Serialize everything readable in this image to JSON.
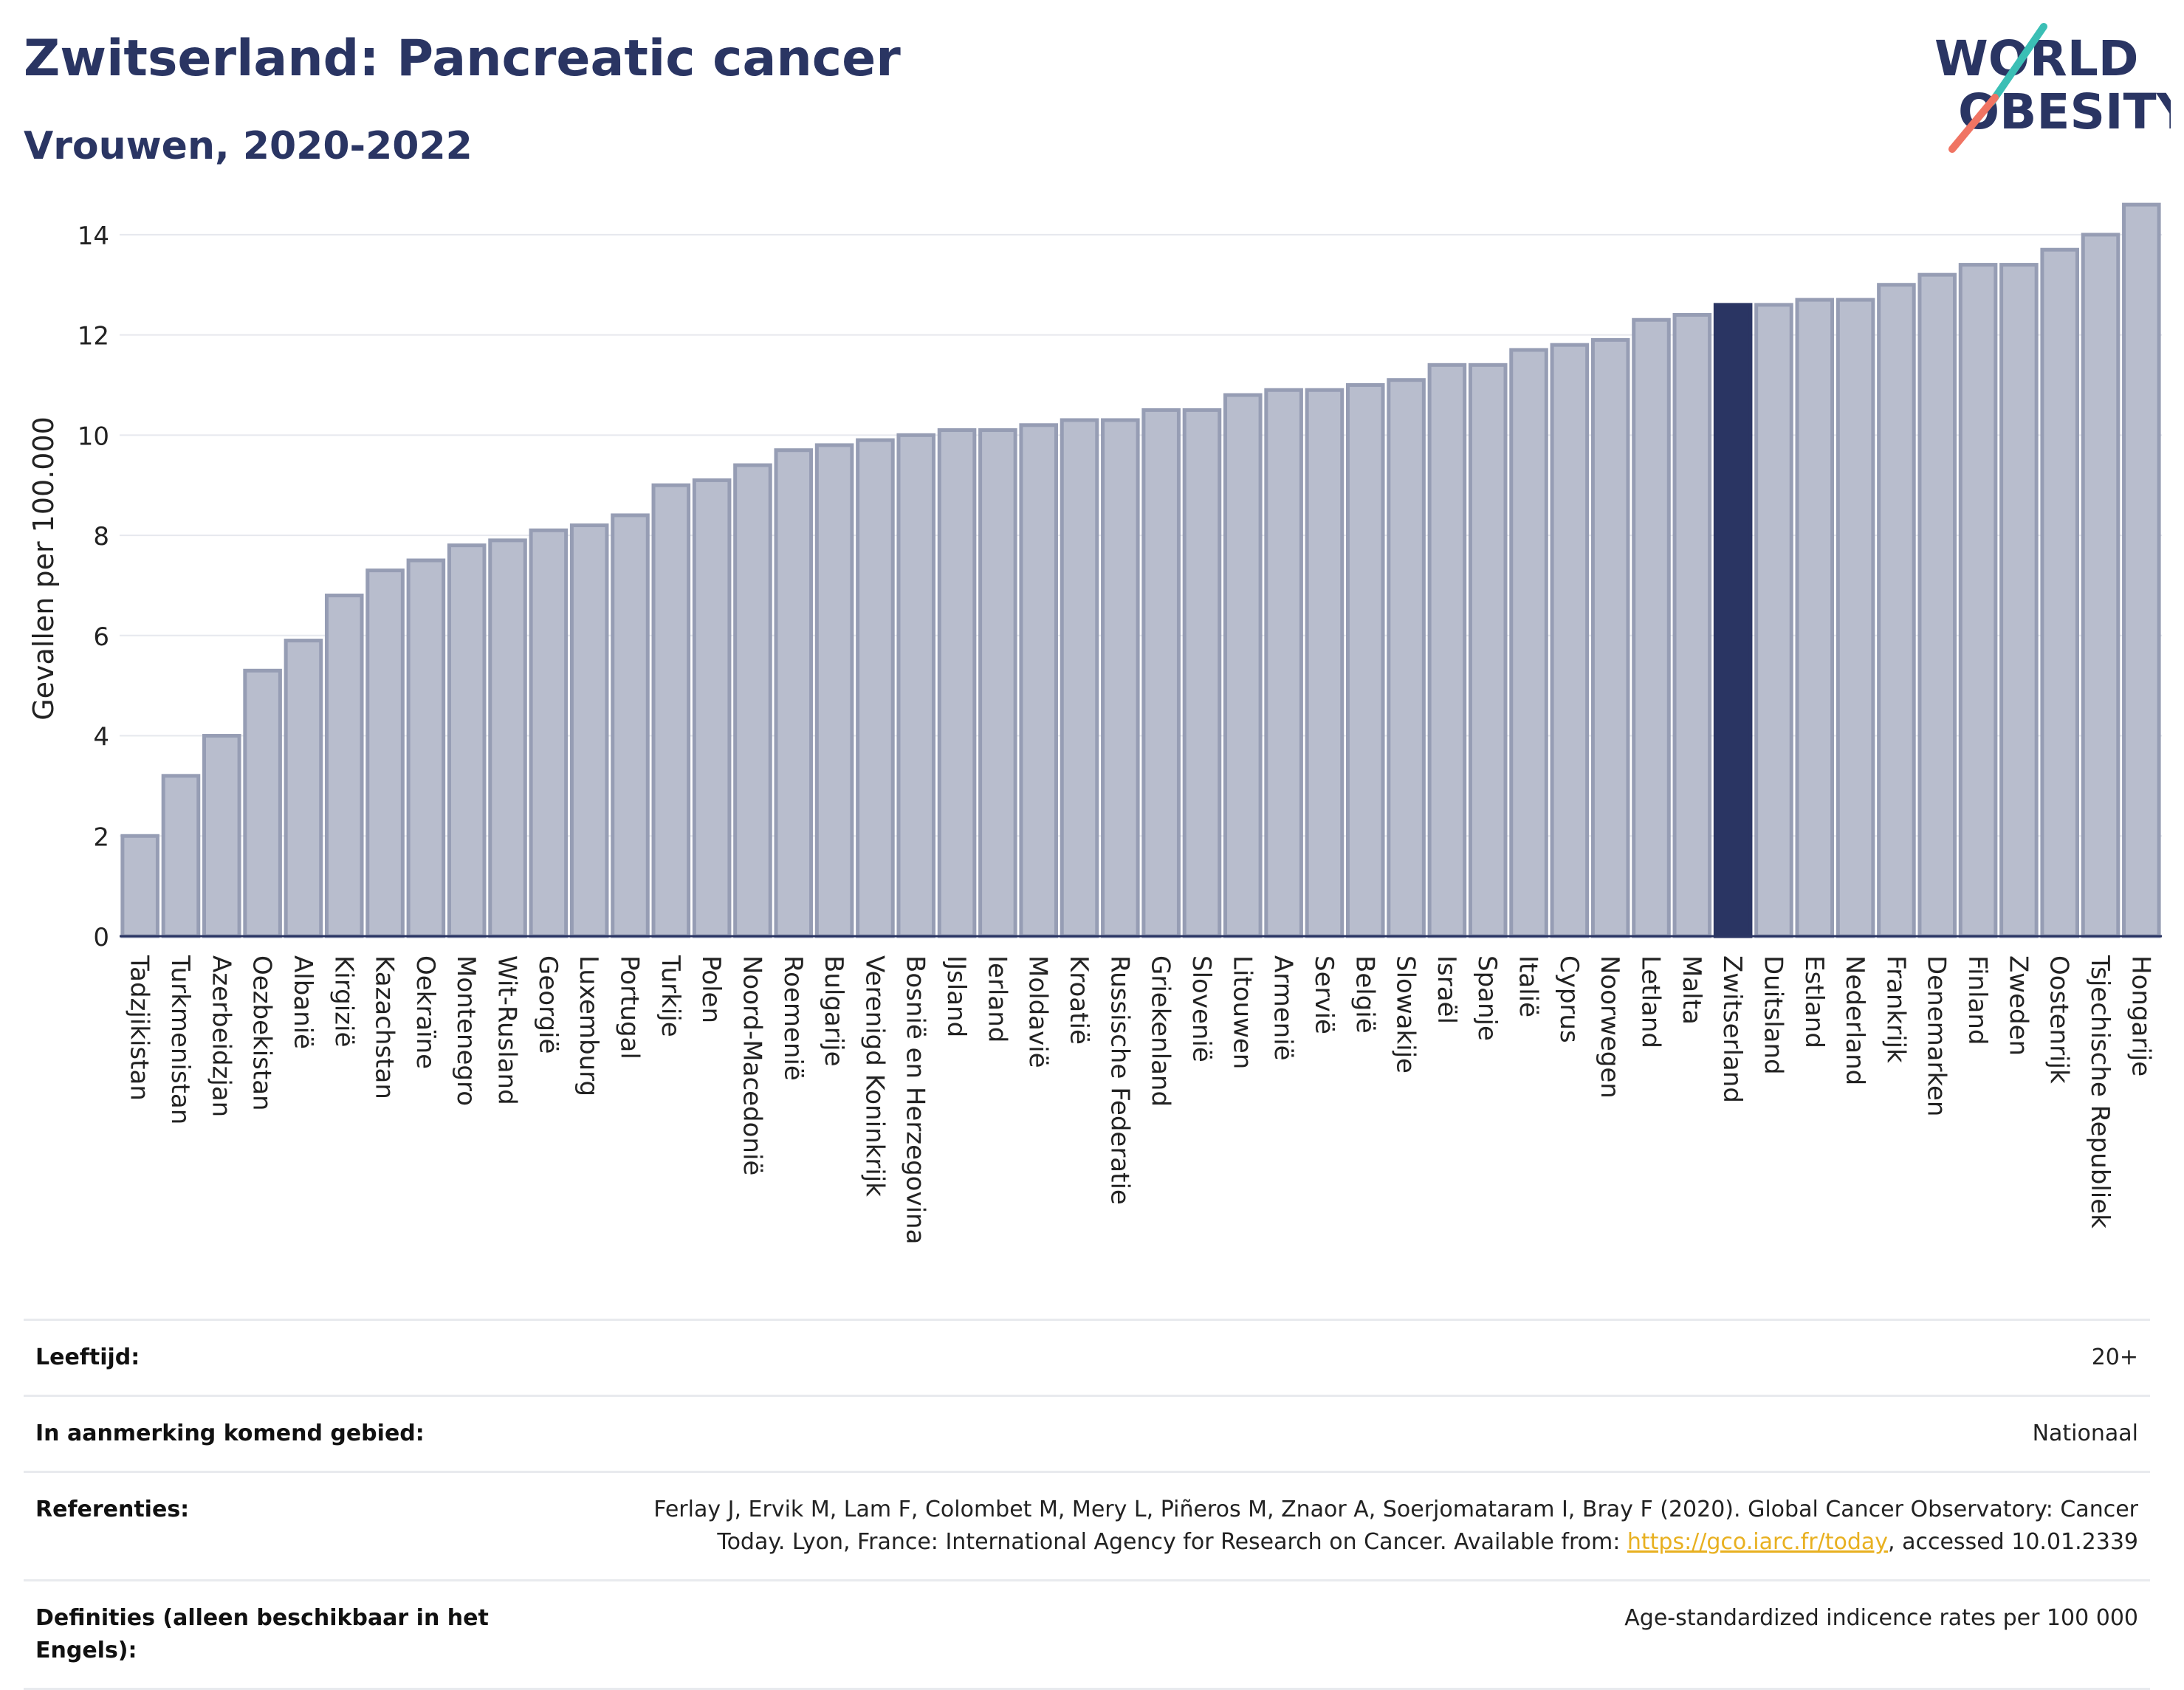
{
  "header": {
    "title": "Zwitserland: Pancreatic cancer",
    "subtitle": "Vrouwen, 2020-2022"
  },
  "logo": {
    "line1": "WORLD",
    "line2": "OBESITY",
    "accent_teal": "#3bbfb5",
    "accent_coral": "#f07463",
    "text_color": "#2a3563"
  },
  "chart_data": {
    "type": "bar",
    "ylabel": "Gevallen per 100.000",
    "ylim": [
      0,
      15
    ],
    "yticks": [
      0,
      2,
      4,
      6,
      8,
      10,
      12,
      14
    ],
    "highlight": "Zwitserland",
    "colors": {
      "bar": "#b8bdcd",
      "bar_border": "#969db4",
      "highlight": "#2a3563"
    },
    "categories": [
      "Tadzjikistan",
      "Turkmenistan",
      "Azerbeidzjan",
      "Oezbekistan",
      "Albanië",
      "Kirgizië",
      "Kazachstan",
      "Oekraïne",
      "Montenegro",
      "Wit-Rusland",
      "Georgië",
      "Luxemburg",
      "Portugal",
      "Turkije",
      "Polen",
      "Noord-Macedonië",
      "Roemenië",
      "Bulgarije",
      "Verenigd Koninkrijk",
      "Bosnië en Herzegovina",
      "IJsland",
      "Ierland",
      "Moldavië",
      "Kroatië",
      "Russische Federatie",
      "Griekenland",
      "Slovenië",
      "Litouwen",
      "Armenië",
      "Servië",
      "België",
      "Slowakije",
      "Israël",
      "Spanje",
      "Italië",
      "Cyprus",
      "Noorwegen",
      "Letland",
      "Malta",
      "Zwitserland",
      "Duitsland",
      "Estland",
      "Nederland",
      "Frankrijk",
      "Denemarken",
      "Finland",
      "Zweden",
      "Oostenrijk",
      "Tsjechische Republiek",
      "Hongarije"
    ],
    "values": [
      2.0,
      3.2,
      4.0,
      5.3,
      5.9,
      6.8,
      7.3,
      7.5,
      7.8,
      7.9,
      8.1,
      8.2,
      8.4,
      9.0,
      9.1,
      9.4,
      9.7,
      9.8,
      9.9,
      10.0,
      10.1,
      10.1,
      10.2,
      10.3,
      10.3,
      10.5,
      10.5,
      10.8,
      10.9,
      10.9,
      11.0,
      11.1,
      11.4,
      11.4,
      11.7,
      11.8,
      11.9,
      12.3,
      12.4,
      12.6,
      12.6,
      12.7,
      12.7,
      13.0,
      13.2,
      13.4,
      13.4,
      13.7,
      14.0,
      14.6
    ]
  },
  "meta": {
    "age_label": "Leeftijd:",
    "age_value": "20+",
    "area_label": "In aanmerking komend gebied:",
    "area_value": "Nationaal",
    "ref_label": "Referenties:",
    "ref_text_1": "Ferlay J, Ervik M, Lam F, Colombet M, Mery L, Piñeros M, Znaor A, Soerjomataram I, Bray F (2020). Global Cancer Observatory: Cancer Today. Lyon, France: International Agency for Research on Cancer. Available from: ",
    "ref_link": "https://gco.iarc.fr/today",
    "ref_text_2": ", accessed 10.01.2339",
    "def_label": "Definities (alleen beschikbaar in het Engels):",
    "def_value": "Age-standardized indicence rates per 100 000"
  }
}
